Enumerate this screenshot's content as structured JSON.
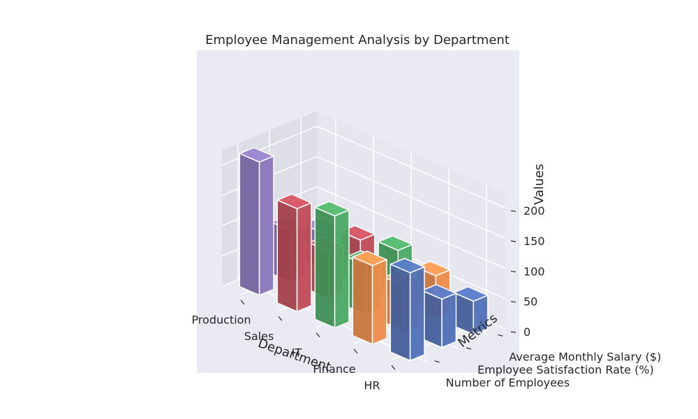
{
  "chart_data": {
    "type": "bar3d",
    "title": "Employee Management Analysis by Department",
    "xlabel": "Department",
    "ylabel": "Metrics",
    "zlabel": "Values",
    "categories": [
      "Production",
      "Sales",
      "IT",
      "Finance",
      "HR"
    ],
    "metrics": [
      "Number of Employees",
      "Employee Satisfaction Rate (%)",
      "Average Monthly Salary ($)"
    ],
    "zticks": [
      0,
      50,
      100,
      150,
      200
    ],
    "zlim": [
      0,
      225
    ],
    "grid": true,
    "series": [
      {
        "metric_index": 0,
        "values": [
          220,
          170,
          185,
          130,
          145
        ]
      },
      {
        "metric_index": 1,
        "values": [
          85,
          78,
          82,
          75,
          80
        ]
      },
      {
        "metric_index": 2,
        "values": [
          60,
          75,
          85,
          70,
          55
        ]
      }
    ],
    "colors": {
      "Production": "#7464a0",
      "Sales": "#a3404a",
      "IT": "#3f8f54",
      "Finance": "#c9773f",
      "HR": "#445f9a",
      "pane": "#e6e6ef",
      "pane_side": "#dedee8",
      "pane_floor": "#eaeaf2",
      "grid": "#ffffff",
      "background": "#ffffff"
    }
  }
}
